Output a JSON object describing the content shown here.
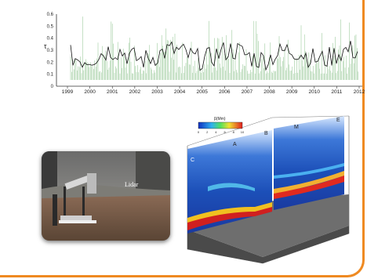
{
  "timeseries": {
    "ylabel": "τ",
    "y_ticks": [
      "0.6",
      "0.5",
      "0.4",
      "0.3",
      "0.2",
      "0.1",
      "0"
    ],
    "x_ticks": [
      "1999",
      "2000",
      "2001",
      "2002",
      "2003",
      "2004",
      "2005",
      "2006",
      "2007",
      "2008",
      "2009",
      "2010",
      "2011",
      "2012"
    ],
    "colors": {
      "daily": "#5aa85a",
      "monthly": "#111111"
    }
  },
  "photo": {
    "label": "Lidar"
  },
  "plot3d": {
    "colorbar_title": "β(Mm)",
    "colorbar_ticks": [
      "0",
      "2",
      "4",
      "6",
      "8",
      "10"
    ],
    "letters": {
      "a": "C",
      "b": "A",
      "c": "B",
      "d": "M",
      "e": "E"
    }
  }
}
